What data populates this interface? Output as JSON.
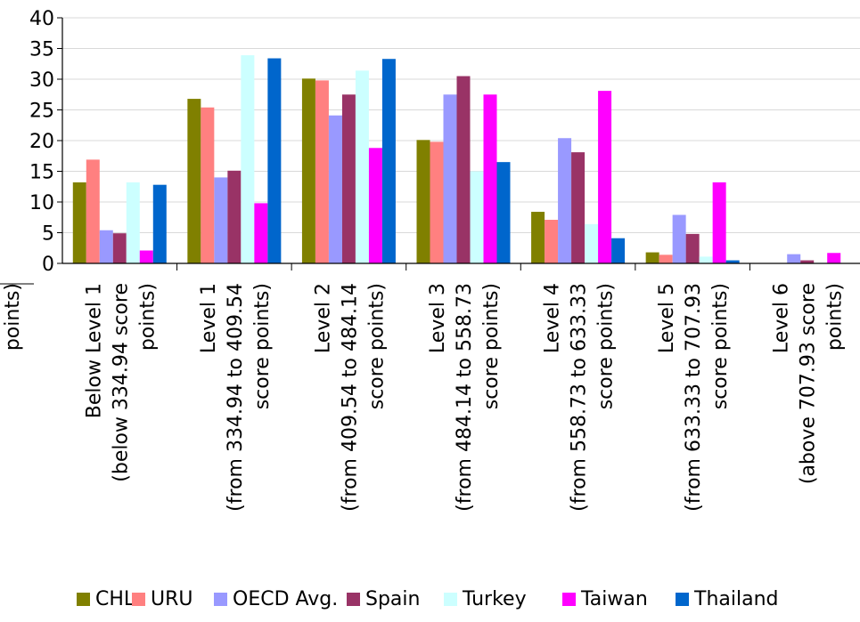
{
  "chart_data": {
    "type": "bar",
    "title": "",
    "xlabel": "",
    "ylabel": "",
    "ylim": [
      0,
      40
    ],
    "yticks": [
      0,
      5,
      10,
      15,
      20,
      25,
      30,
      35,
      40
    ],
    "grid": true,
    "legend_position": "bottom",
    "clipped_label_fragment": "points)",
    "categories": [
      "Below Level 1 (below 334.94 score points)",
      "Level 1 (from 334.94 to 409.54 score points)",
      "Level 2 (from 409.54 to 484.14 score points)",
      "Level 3 (from 484.14 to 558.73 score points)",
      "Level 4 (from 558.73 to 633.33 score points)",
      "Level 5 (from 633.33 to 707.93 score points)",
      "Level 6 (above 707.93 score points)"
    ],
    "category_lines": [
      [
        "Below Level 1",
        "(below 334.94 score",
        "points)"
      ],
      [
        "Level 1",
        "(from 334.94 to 409.54",
        "score points)"
      ],
      [
        "Level 2",
        "(from 409.54 to 484.14",
        "score points)"
      ],
      [
        "Level 3",
        "(from 484.14 to 558.73",
        "score points)"
      ],
      [
        "Level 4",
        "(from 558.73 to 633.33",
        "score points)"
      ],
      [
        "Level 5",
        "(from 633.33 to 707.93",
        "score points)"
      ],
      [
        "Level 6",
        "(above 707.93 score",
        "points)"
      ]
    ],
    "series": [
      {
        "name": "CHL",
        "color": "#808000",
        "values": [
          13.2,
          26.8,
          30.1,
          20.1,
          8.4,
          1.8,
          0
        ]
      },
      {
        "name": "URU",
        "color": "#FF8080",
        "values": [
          16.9,
          25.4,
          29.8,
          19.8,
          7.1,
          1.4,
          0
        ]
      },
      {
        "name": "OECD Avg.",
        "color": "#9999FF",
        "values": [
          5.4,
          14.0,
          24.1,
          27.5,
          20.4,
          7.9,
          1.5
        ]
      },
      {
        "name": "Spain",
        "color": "#993366",
        "values": [
          4.9,
          15.1,
          27.5,
          30.5,
          18.1,
          4.8,
          0.5
        ]
      },
      {
        "name": "Turkey",
        "color": "#CCFFFF",
        "values": [
          13.2,
          33.9,
          31.4,
          15.0,
          6.4,
          1.1,
          0.1
        ]
      },
      {
        "name": "Taiwan",
        "color": "#FF00FF",
        "values": [
          2.1,
          9.8,
          18.8,
          27.5,
          28.1,
          13.2,
          1.7
        ]
      },
      {
        "name": "Thailand",
        "color": "#0066CC",
        "values": [
          12.8,
          33.4,
          33.3,
          16.5,
          4.1,
          0.5,
          0
        ]
      }
    ]
  }
}
